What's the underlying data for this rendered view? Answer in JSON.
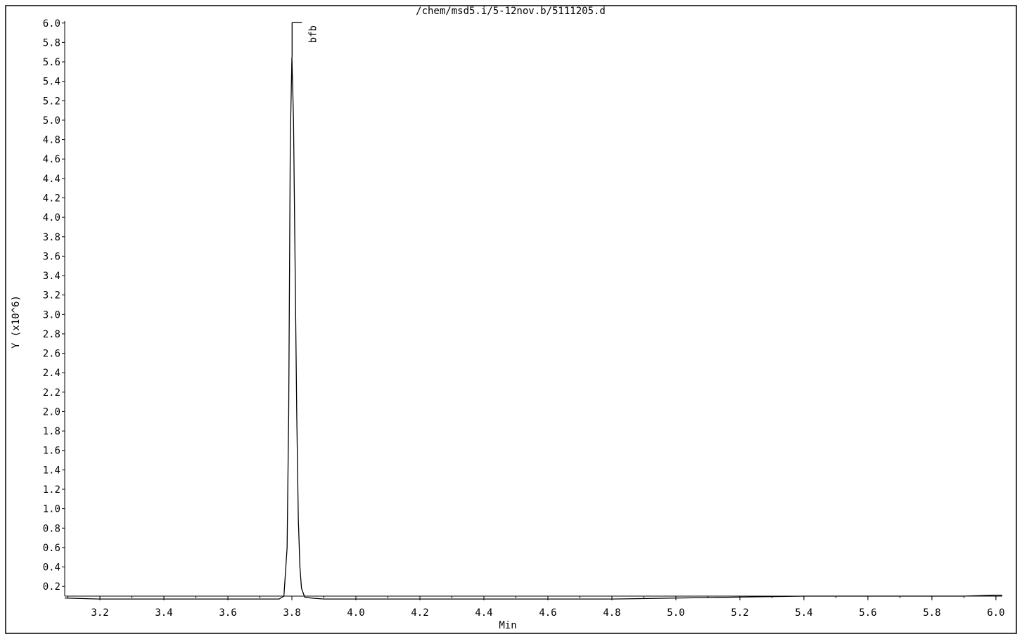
{
  "chart_data": {
    "type": "line",
    "title": "/chem/msd5.i/5-12nov.b/5111205.d",
    "xlabel": "Min",
    "ylabel": "Y (x10^6)",
    "xlim": [
      3.09,
      6.02
    ],
    "ylim": [
      0.1,
      6.02
    ],
    "x_ticks": [
      3.2,
      3.4,
      3.6,
      3.8,
      4.0,
      4.2,
      4.4,
      4.6,
      4.8,
      5.0,
      5.2,
      5.4,
      5.6,
      5.8,
      6.0
    ],
    "x_tick_labels": [
      "3.2",
      "3.4",
      "3.6",
      "3.8",
      "4.0",
      "4.2",
      "4.4",
      "4.6",
      "4.8",
      "5.0",
      "5.2",
      "5.4",
      "5.6",
      "5.8",
      "6.0"
    ],
    "y_ticks": [
      0.2,
      0.4,
      0.6,
      0.8,
      1.0,
      1.2,
      1.4,
      1.6,
      1.8,
      2.0,
      2.2,
      2.4,
      2.6,
      2.8,
      3.0,
      3.2,
      3.4,
      3.6,
      3.8,
      4.0,
      4.2,
      4.4,
      4.6,
      4.8,
      5.0,
      5.2,
      5.4,
      5.6,
      5.8,
      6.0
    ],
    "y_tick_labels": [
      "0.2",
      "0.4",
      "0.6",
      "0.8",
      "1.0",
      "1.2",
      "1.4",
      "1.6",
      "1.8",
      "2.0",
      "2.2",
      "2.4",
      "2.6",
      "2.8",
      "3.0",
      "3.2",
      "3.4",
      "3.6",
      "3.8",
      "4.0",
      "4.2",
      "4.4",
      "4.6",
      "4.8",
      "5.0",
      "5.2",
      "5.4",
      "5.6",
      "5.8",
      "6.0"
    ],
    "grid": false,
    "line_color": "#000000",
    "series": [
      {
        "x": [
          3.09,
          3.2,
          3.4,
          3.6,
          3.7,
          3.76,
          3.775,
          3.785,
          3.79,
          3.795,
          3.8,
          3.805,
          3.81,
          3.815,
          3.82,
          3.825,
          3.83,
          3.84,
          3.86,
          3.9,
          4.0,
          4.2,
          4.4,
          4.6,
          4.8,
          5.0,
          5.2,
          5.4,
          5.6,
          5.8,
          5.9,
          6.0,
          6.02
        ],
        "y": [
          0.08,
          0.07,
          0.07,
          0.07,
          0.07,
          0.07,
          0.1,
          0.6,
          2.0,
          4.8,
          5.65,
          5.0,
          3.5,
          2.0,
          0.9,
          0.4,
          0.18,
          0.09,
          0.08,
          0.07,
          0.07,
          0.07,
          0.07,
          0.07,
          0.07,
          0.08,
          0.09,
          0.1,
          0.1,
          0.1,
          0.1,
          0.11,
          0.11
        ]
      }
    ],
    "annotations": [
      {
        "label": "bfb",
        "x": 3.805
      }
    ]
  }
}
